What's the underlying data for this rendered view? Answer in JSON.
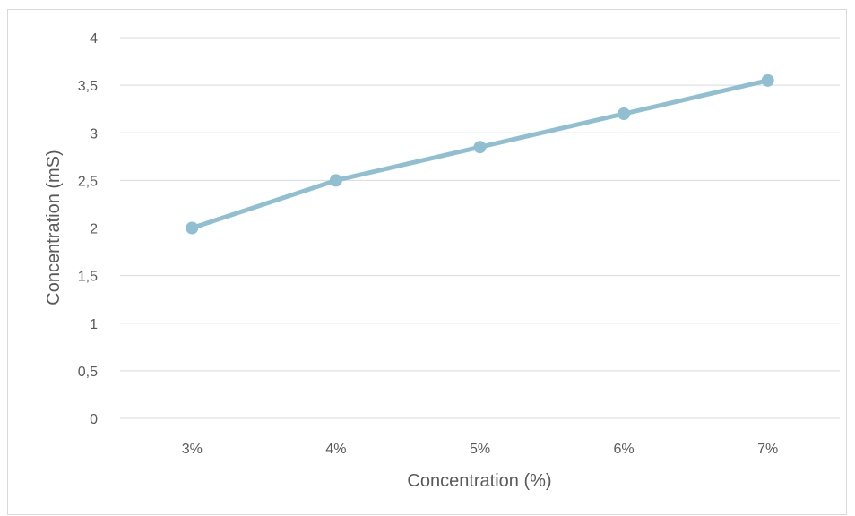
{
  "chart_data": {
    "type": "line",
    "title": "",
    "xlabel": "Concentration (%)",
    "ylabel": "Concentration (mS)",
    "categories": [
      "3%",
      "4%",
      "5%",
      "6%",
      "7%"
    ],
    "series": [
      {
        "values": [
          2.0,
          2.5,
          2.85,
          3.2,
          3.55
        ]
      }
    ],
    "ylim": [
      0,
      4
    ],
    "yticks": [
      "0",
      "0,5",
      "1",
      "1,5",
      "2",
      "2,5",
      "3",
      "3,5",
      "4"
    ],
    "ytick_values": [
      0,
      0.5,
      1,
      1.5,
      2,
      2.5,
      3,
      3.5,
      4
    ],
    "grid": true,
    "legend": "none",
    "colors": {
      "line": "#8fbfd1",
      "marker": "#8fbfd1",
      "grid": "#d9d9d9",
      "text": "#595959"
    }
  }
}
